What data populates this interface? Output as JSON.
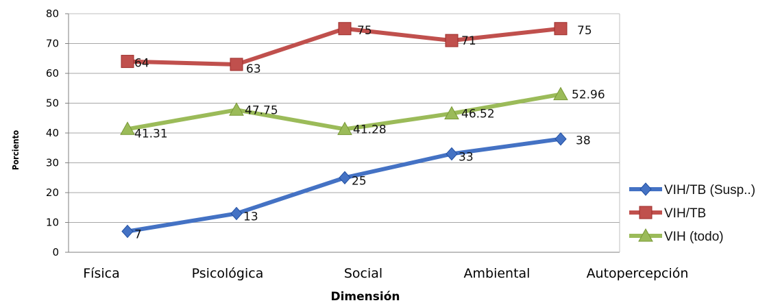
{
  "chart_data": {
    "type": "line",
    "title": "",
    "xlabel": "Dimensión",
    "ylabel": "Porciento",
    "categories": [
      "Física",
      "Psicológica",
      "Social",
      "Ambiental",
      "Autopercepción"
    ],
    "ylim": [
      0,
      80
    ],
    "yticks": [
      "0",
      "10",
      "20",
      "30",
      "40",
      "50",
      "60",
      "70",
      "80"
    ],
    "grid": true,
    "legend_position": "right",
    "series": [
      {
        "name": "VIH/TB (Susp..)",
        "color": "#4472c4",
        "marker": "diamond",
        "values": [
          7,
          13,
          25,
          33,
          38
        ],
        "labels": [
          "7",
          "13",
          "25",
          "33",
          "38"
        ]
      },
      {
        "name": "VIH/TB",
        "color": "#c0504d",
        "marker": "square",
        "values": [
          64,
          63,
          75,
          71,
          75
        ],
        "labels": [
          "64",
          "63",
          "75",
          "71",
          "75"
        ]
      },
      {
        "name": "VIH (todo)",
        "color": "#9bbb59",
        "marker": "triangle",
        "values": [
          41.31,
          47.75,
          41.28,
          46.52,
          52.96
        ],
        "labels": [
          "41.31",
          "47.75",
          "41.28",
          "46.52",
          "52.96"
        ]
      }
    ]
  }
}
